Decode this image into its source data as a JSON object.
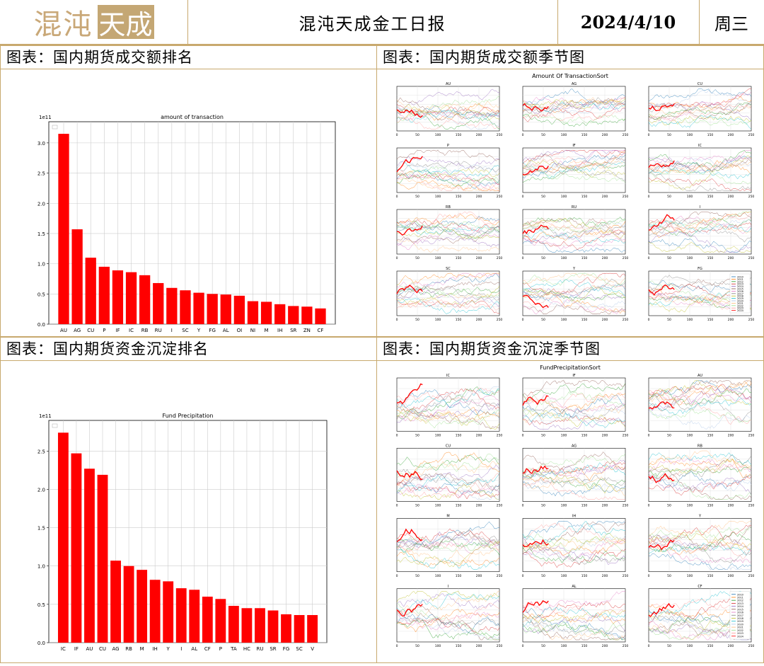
{
  "header": {
    "logo_text_1": "混沌",
    "logo_text_2": "天成",
    "title": "混沌天成金工日报",
    "date": "2024/4/10",
    "weekday": "周三"
  },
  "panels": {
    "p1_caption": "图表：国内期货成交额排名",
    "p2_caption": "图表：国内期货成交额季节图",
    "p3_caption": "图表：国内期货资金沉淀排名",
    "p4_caption": "图表：国内期货资金沉淀季节图"
  },
  "chart_data": [
    {
      "type": "bar",
      "title": "amount of transaction",
      "exponent_label": "1e11",
      "categories": [
        "AU",
        "AG",
        "CU",
        "P",
        "IF",
        "IC",
        "RB",
        "RU",
        "I",
        "SC",
        "Y",
        "FG",
        "AL",
        "OI",
        "NI",
        "M",
        "IH",
        "SR",
        "ZN",
        "CF"
      ],
      "values": [
        3.15,
        1.57,
        1.1,
        0.95,
        0.89,
        0.86,
        0.81,
        0.68,
        0.6,
        0.56,
        0.52,
        0.5,
        0.49,
        0.47,
        0.38,
        0.37,
        0.33,
        0.3,
        0.29,
        0.26
      ],
      "yticks": [
        "0.0",
        "0.5",
        "1.0",
        "1.5",
        "2.0",
        "2.5",
        "3.0"
      ],
      "ylim": [
        0,
        3.35
      ],
      "color": "#ff0000"
    },
    {
      "type": "line",
      "title": "Amount Of TransactionSort",
      "subplots": [
        "AU",
        "AG",
        "CU",
        "P",
        "IF",
        "IC",
        "RB",
        "RU",
        "I",
        "SC",
        "Y",
        "FG"
      ],
      "x_ticks": [
        "0",
        "50",
        "100",
        "150",
        "200",
        "250"
      ],
      "legend": [
        "2010",
        "2011",
        "2012",
        "2013",
        "2014",
        "2015",
        "2016",
        "2017",
        "2018",
        "2019",
        "2020",
        "2021",
        "2022",
        "2023",
        "2024"
      ]
    },
    {
      "type": "bar",
      "title": "Fund Precipitation",
      "exponent_label": "1e11",
      "categories": [
        "IC",
        "IF",
        "AU",
        "CU",
        "AG",
        "RB",
        "M",
        "IH",
        "Y",
        "I",
        "AL",
        "CF",
        "P",
        "TA",
        "HC",
        "RU",
        "SR",
        "FG",
        "SC",
        "V"
      ],
      "values": [
        2.74,
        2.47,
        2.27,
        2.19,
        1.07,
        1.0,
        0.95,
        0.82,
        0.8,
        0.71,
        0.69,
        0.6,
        0.57,
        0.48,
        0.45,
        0.45,
        0.42,
        0.37,
        0.36,
        0.36
      ],
      "yticks": [
        "0.0",
        "0.5",
        "1.0",
        "1.5",
        "2.0",
        "2.5"
      ],
      "ylim": [
        0,
        2.9
      ],
      "color": "#ff0000"
    },
    {
      "type": "line",
      "title": "FundPrecipitationSort",
      "subplots": [
        "IC",
        "IF",
        "AU",
        "CU",
        "AG",
        "RB",
        "M",
        "IH",
        "Y",
        "I",
        "AL",
        "CF"
      ],
      "x_ticks": [
        "0",
        "50",
        "100",
        "150",
        "200",
        "250"
      ],
      "legend": [
        "2010",
        "2011",
        "2012",
        "2013",
        "2014",
        "2015",
        "2016",
        "2017",
        "2018",
        "2019",
        "2020",
        "2021",
        "2022",
        "2023",
        "2024"
      ]
    }
  ]
}
